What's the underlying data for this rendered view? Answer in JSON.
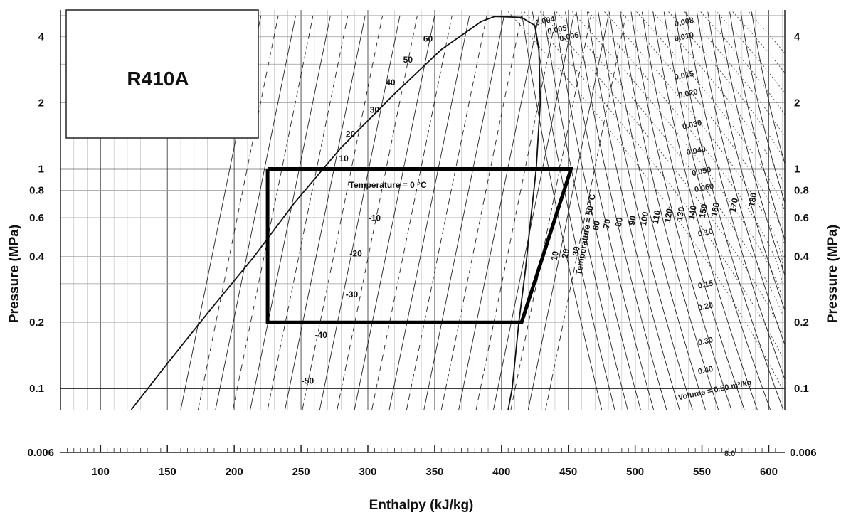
{
  "chart_data": {
    "type": "line",
    "refrigerant": "R410A",
    "xlabel": "Enthalpy  (kJ/kg)",
    "ylabel_left": "Pressure  (MPa)",
    "ylabel_right": "Pressure  (MPa)",
    "xlim": [
      70,
      612
    ],
    "ylim": [
      0.08,
      5.3
    ],
    "yscale": "log",
    "grid": true,
    "x_ticks": [
      100,
      150,
      200,
      250,
      300,
      350,
      400,
      450,
      500,
      550,
      600
    ],
    "y_ticks": [
      {
        "value": 0.1,
        "label": "0.1"
      },
      {
        "value": 0.2,
        "label": "0.2"
      },
      {
        "value": 0.4,
        "label": "0.4"
      },
      {
        "value": 0.6,
        "label": "0.6"
      },
      {
        "value": 0.8,
        "label": "0.8"
      },
      {
        "value": 1,
        "label": "1"
      },
      {
        "value": 2,
        "label": "2"
      },
      {
        "value": 4,
        "label": "4"
      }
    ],
    "bottom_scale_label": "0.006",
    "bottom_scale_right_label": "0.006",
    "bottom_scale_end_label": "8.0",
    "saturation_dome": {
      "liquid": [
        [
          123,
          0.08
        ],
        [
          150,
          0.13
        ],
        [
          180,
          0.22
        ],
        [
          215,
          0.4
        ],
        [
          245,
          0.7
        ],
        [
          280,
          1.25
        ],
        [
          320,
          2.2
        ],
        [
          355,
          3.5
        ],
        [
          385,
          4.7
        ],
        [
          395,
          4.95
        ]
      ],
      "vapor": [
        [
          395,
          4.95
        ],
        [
          415,
          4.9
        ],
        [
          425,
          4.5
        ],
        [
          428,
          3.5
        ],
        [
          429,
          2.0
        ],
        [
          426,
          1.0
        ],
        [
          422,
          0.6
        ],
        [
          418,
          0.35
        ],
        [
          413,
          0.2
        ],
        [
          408,
          0.1
        ],
        [
          405,
          0.08
        ]
      ]
    },
    "cycle": {
      "name": "",
      "points": [
        [
          225,
          1.0
        ],
        [
          452,
          1.0
        ],
        [
          415,
          0.2
        ],
        [
          225,
          0.2
        ],
        [
          225,
          1.0
        ]
      ]
    },
    "isotherm_labels": [
      {
        "label": "60",
        "h": 345,
        "p": 3.8
      },
      {
        "label": "50",
        "h": 330,
        "p": 3.05
      },
      {
        "label": "40",
        "h": 317,
        "p": 2.4
      },
      {
        "label": "30",
        "h": 305,
        "p": 1.8
      },
      {
        "label": "20",
        "h": 287,
        "p": 1.4
      },
      {
        "label": "10",
        "h": 282,
        "p": 1.08
      },
      {
        "label": "Temperature = 0 °C",
        "h": 315,
        "p": 0.82
      },
      {
        "label": "-10",
        "h": 305,
        "p": 0.58
      },
      {
        "label": "-20",
        "h": 291,
        "p": 0.4
      },
      {
        "label": "-30",
        "h": 288,
        "p": 0.26
      },
      {
        "label": "-40",
        "h": 265,
        "p": 0.17
      },
      {
        "label": "-50",
        "h": 255,
        "p": 0.105
      }
    ],
    "vapor_temp_labels": [
      {
        "label": "10",
        "h": 442,
        "p": 0.4
      },
      {
        "label": "20",
        "h": 450,
        "p": 0.41
      },
      {
        "label": "30",
        "h": 458,
        "p": 0.42
      },
      {
        "label": "Temperature = 50 °C",
        "h": 465,
        "p": 0.5
      },
      {
        "label": "60",
        "h": 473,
        "p": 0.55
      },
      {
        "label": "70",
        "h": 481,
        "p": 0.56
      },
      {
        "label": "80",
        "h": 490,
        "p": 0.57
      },
      {
        "label": "90",
        "h": 500,
        "p": 0.58
      },
      {
        "label": "100",
        "h": 509,
        "p": 0.59
      },
      {
        "label": "110",
        "h": 518,
        "p": 0.6
      },
      {
        "label": "120",
        "h": 527,
        "p": 0.61
      },
      {
        "label": "130",
        "h": 536,
        "p": 0.62
      },
      {
        "label": "140",
        "h": 545,
        "p": 0.63
      },
      {
        "label": "150",
        "h": 553,
        "p": 0.64
      },
      {
        "label": "160",
        "h": 562,
        "p": 0.65
      },
      {
        "label": "170",
        "h": 576,
        "p": 0.68
      },
      {
        "label": "180",
        "h": 590,
        "p": 0.72
      }
    ],
    "volume_labels": [
      {
        "label": "0.004",
        "h": 433,
        "p": 4.6
      },
      {
        "label": "0.005",
        "h": 442,
        "p": 4.2
      },
      {
        "label": "0.006",
        "h": 451,
        "p": 3.9
      },
      {
        "label": "0.008",
        "h": 537,
        "p": 4.55
      },
      {
        "label": "0.010",
        "h": 537,
        "p": 3.9
      },
      {
        "label": "0.015",
        "h": 537,
        "p": 2.6
      },
      {
        "label": "0.020",
        "h": 540,
        "p": 2.15
      },
      {
        "label": "0.030",
        "h": 543,
        "p": 1.55
      },
      {
        "label": "0.040",
        "h": 546,
        "p": 1.18
      },
      {
        "label": "0.050",
        "h": 550,
        "p": 0.95
      },
      {
        "label": "0.060",
        "h": 552,
        "p": 0.8
      },
      {
        "label": "0.10",
        "h": 553,
        "p": 0.5
      },
      {
        "label": "0.15",
        "h": 553,
        "p": 0.29
      },
      {
        "label": "0.20",
        "h": 553,
        "p": 0.23
      },
      {
        "label": "0.30",
        "h": 553,
        "p": 0.16
      },
      {
        "label": "0.40",
        "h": 553,
        "p": 0.118
      },
      {
        "label": "Volume = 0.50 m³/kg",
        "h": 560,
        "p": 0.096
      }
    ]
  }
}
